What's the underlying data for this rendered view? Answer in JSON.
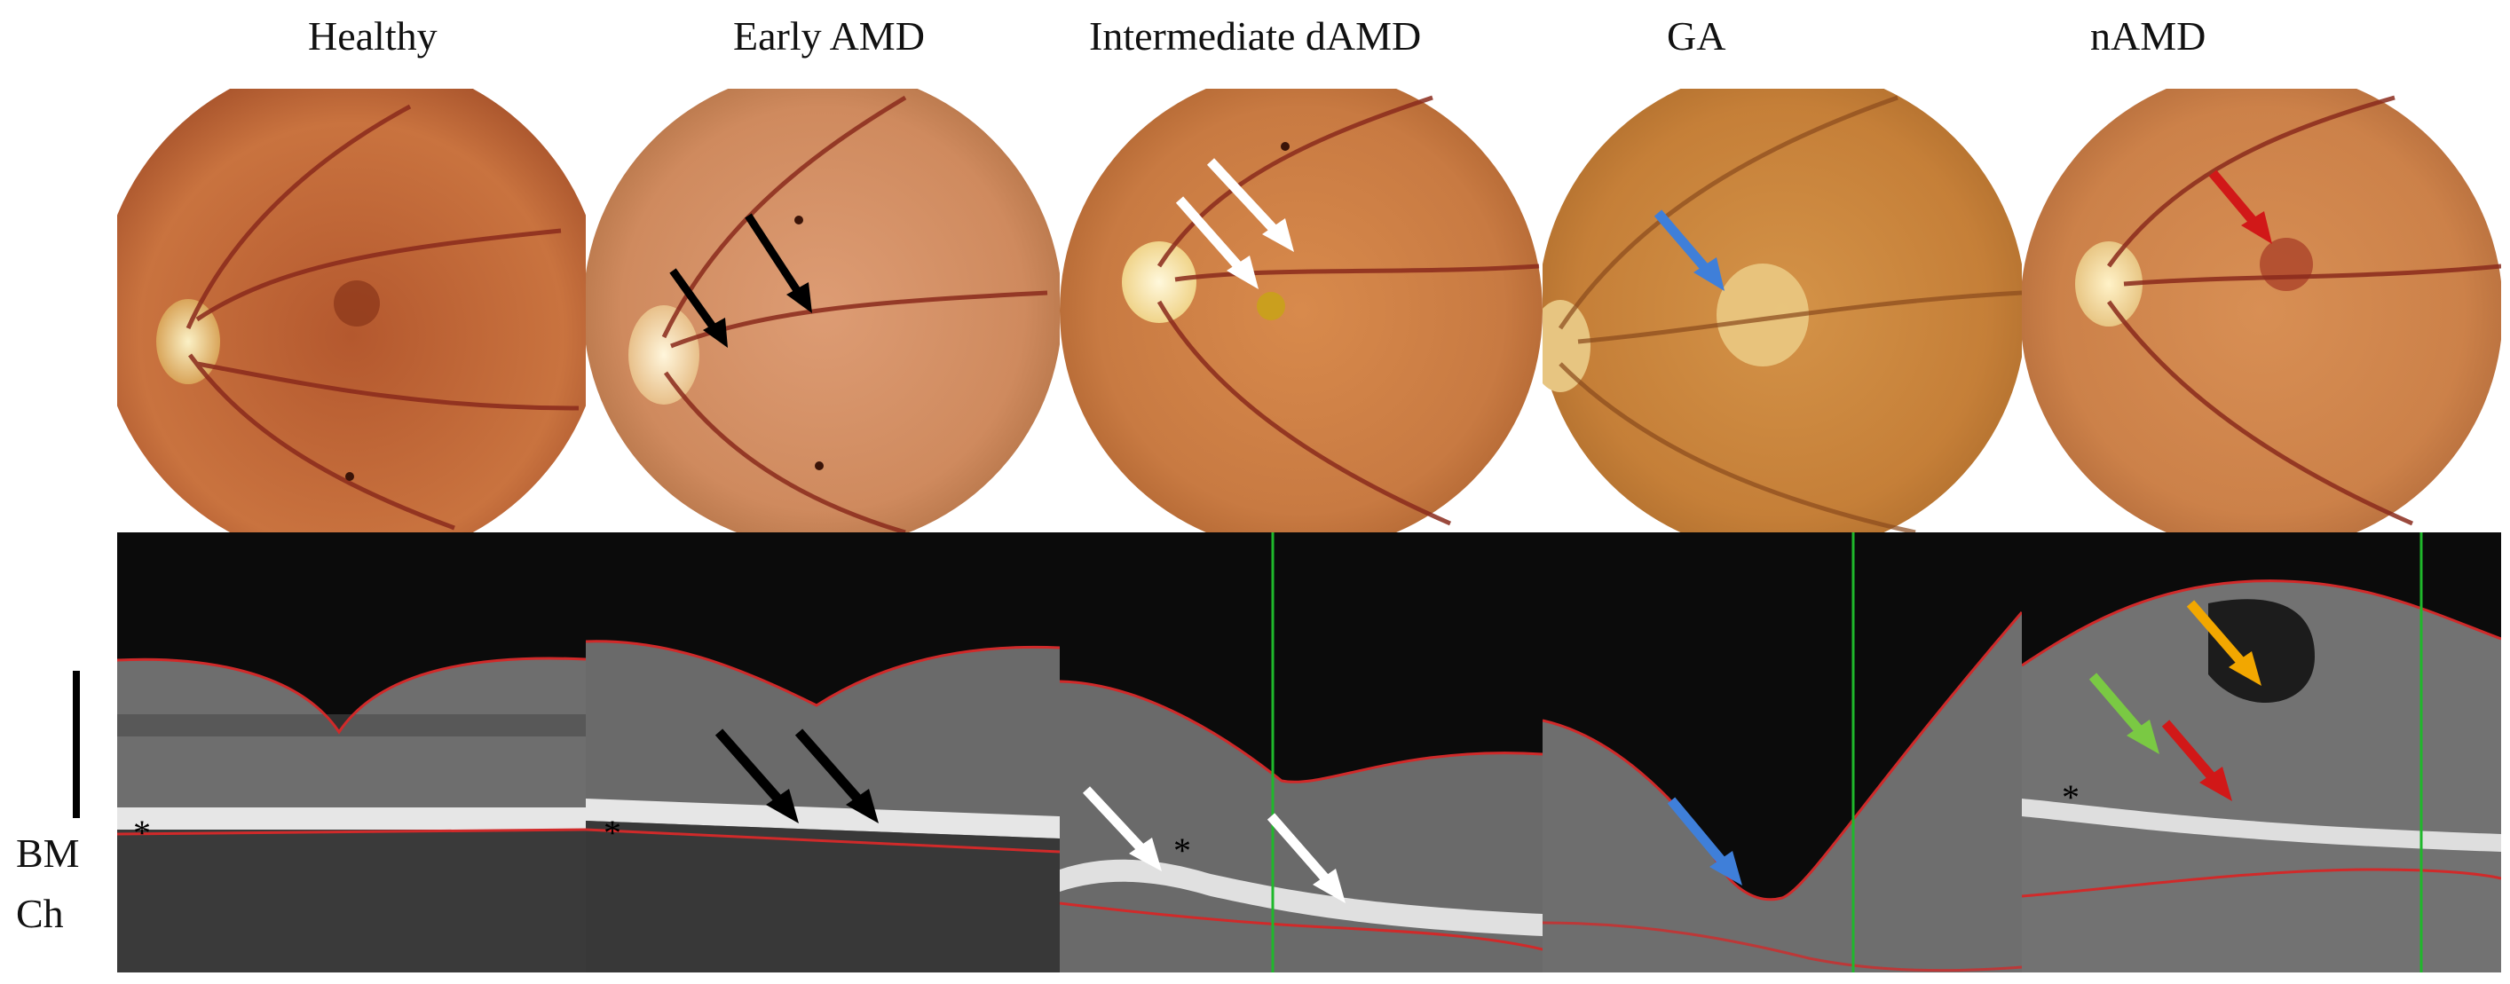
{
  "columns": [
    {
      "title": "Healthy"
    },
    {
      "title": "Early AMD"
    },
    {
      "title": "Intermediate dAMD"
    },
    {
      "title": "GA"
    },
    {
      "title": "nAMD"
    }
  ],
  "side_labels": {
    "bm": "BM",
    "ch": "Ch"
  },
  "oct_marker": "*",
  "colors": {
    "fundus_bg": "#c9733f",
    "vessel": "#8a2a1c",
    "disc": "#f2e2a8",
    "oct_boundary": "#d02a2a",
    "scan_line": "#1fb82b",
    "arrow_black": "#000000",
    "arrow_white": "#ffffff",
    "arrow_blue": "#3f7fd9",
    "arrow_red": "#d11818",
    "arrow_yellow": "#f2a700",
    "arrow_green": "#7ac943"
  }
}
